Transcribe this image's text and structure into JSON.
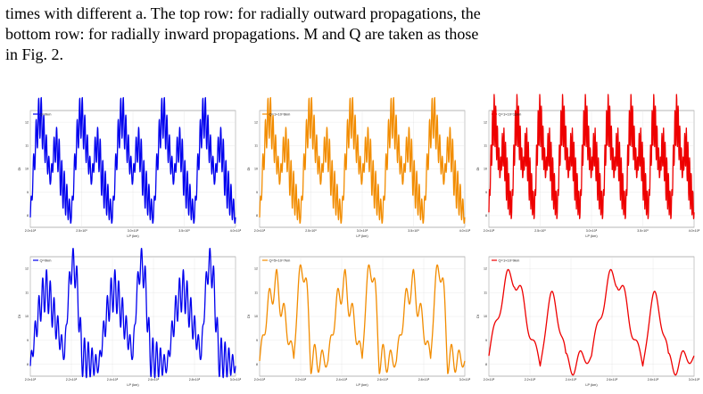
{
  "caption": {
    "line1": "times with different a. The top row: for radially outward propagations, the",
    "line2": "bottom row: for radially inward propagations. M and Q are taken as those",
    "line3": "in Fig. 2."
  },
  "colors": {
    "blue": "#0000ee",
    "orange": "#f28c00",
    "red": "#ee0000"
  },
  "chart_data": [
    {
      "type": "line",
      "legend": "Q=0km",
      "color": "#0000ee",
      "xlabel": "LP (km)",
      "ylabel": "Dt",
      "xticks": [
        "2.0×10⁸",
        "2.5×10⁸",
        "3.0×10⁸",
        "3.5×10⁸",
        "4.0×10⁸"
      ],
      "yticks": [
        "12",
        "11",
        "10",
        "9",
        "8"
      ],
      "xlim": [
        200000000.0,
        400000000.0
      ],
      "ylim": [
        7.6,
        12.3
      ],
      "grid": true,
      "legend_position": "top-left",
      "pattern": {
        "humps": 5,
        "hump_shape": [
          12.1,
          9.5,
          10.9,
          8.0
        ],
        "osc_amp": 0.9,
        "osc_count": 16
      }
    },
    {
      "type": "line",
      "legend": "Q=1×10^6km",
      "color": "#f28c00",
      "xlabel": "LP (km)",
      "ylabel": "Dt",
      "xticks": [
        "2.0×10⁸",
        "2.5×10⁸",
        "3.0×10⁸",
        "3.5×10⁸",
        "4.0×10⁸"
      ],
      "yticks": [
        "12",
        "11",
        "10",
        "9",
        "8"
      ],
      "xlim": [
        200000000.0,
        400000000.0
      ],
      "ylim": [
        7.6,
        12.3
      ],
      "grid": true,
      "legend_position": "top-left",
      "pattern": {
        "humps": 5,
        "hump_shape": [
          12.1,
          9.5,
          10.9,
          8.0
        ],
        "osc_amp": 0.9,
        "osc_count": 16
      }
    },
    {
      "type": "line",
      "legend": "Q=1×10^11km",
      "color": "#ee0000",
      "xlabel": "LP (km)",
      "ylabel": "Dt",
      "xticks": [
        "2.0×10⁸",
        "2.5×10⁸",
        "3.0×10⁸",
        "3.5×10⁸",
        "4.0×10⁸"
      ],
      "yticks": [
        "12",
        "11",
        "10",
        "9",
        "8"
      ],
      "xlim": [
        200000000.0,
        400000000.0
      ],
      "ylim": [
        7.6,
        12.3
      ],
      "grid": true,
      "legend_position": "top-left",
      "pattern": {
        "humps": 9,
        "hump_shape": [
          12.0,
          9.8,
          10.8,
          8.2
        ],
        "osc_amp": 1.0,
        "osc_count": 14
      }
    },
    {
      "type": "line",
      "legend": "Q=0km",
      "color": "#0000ee",
      "xlabel": "LP (km)",
      "ylabel": "Dt",
      "xticks": [
        "2.0×10⁸",
        "2.2×10⁸",
        "2.4×10⁸",
        "2.6×10⁸",
        "2.8×10⁸",
        "3.0×10⁸"
      ],
      "yticks": [
        "12",
        "11",
        "10",
        "9",
        "8"
      ],
      "xlim": [
        200000000.0,
        300000000.0
      ],
      "ylim": [
        7.6,
        12.3
      ],
      "grid": true,
      "legend_position": "top-left",
      "pattern": {
        "humps": 3,
        "hump_shape": [
          11.0,
          8.4,
          12.0,
          8.0
        ],
        "osc_amp": 0.8,
        "osc_count": 18
      }
    },
    {
      "type": "line",
      "legend": "Q=5×10^7km",
      "color": "#f28c00",
      "xlabel": "LP (km)",
      "ylabel": "Dt",
      "xticks": [
        "2.0×10⁸",
        "2.2×10⁸",
        "2.4×10⁸",
        "2.6×10⁸",
        "2.8×10⁸",
        "3.0×10⁸"
      ],
      "yticks": [
        "12",
        "11",
        "10",
        "9",
        "8"
      ],
      "xlim": [
        200000000.0,
        300000000.0
      ],
      "ylim": [
        7.6,
        12.3
      ],
      "grid": true,
      "legend_position": "top-left",
      "pattern": {
        "humps": 3,
        "hump_shape": [
          11.2,
          8.3,
          11.9,
          8.2
        ],
        "osc_amp": 0.6,
        "osc_count": 9
      }
    },
    {
      "type": "line",
      "legend": "Q=1×10^9km",
      "color": "#ee0000",
      "xlabel": "LP (km)",
      "ylabel": "Dt",
      "xticks": [
        "2.0×10⁸",
        "2.2×10⁸",
        "2.4×10⁸",
        "2.6×10⁸",
        "2.8×10⁸",
        "3.0×10⁸"
      ],
      "yticks": [
        "12",
        "11",
        "10",
        "9",
        "8"
      ],
      "xlim": [
        200000000.0,
        300000000.0
      ],
      "ylim": [
        7.6,
        12.3
      ],
      "grid": true,
      "legend_position": "top-left",
      "pattern": {
        "humps": 2,
        "hump_shape": [
          11.6,
          8.0,
          10.6,
          8.4
        ],
        "osc_amp": 0.5,
        "osc_count": 7
      }
    }
  ]
}
